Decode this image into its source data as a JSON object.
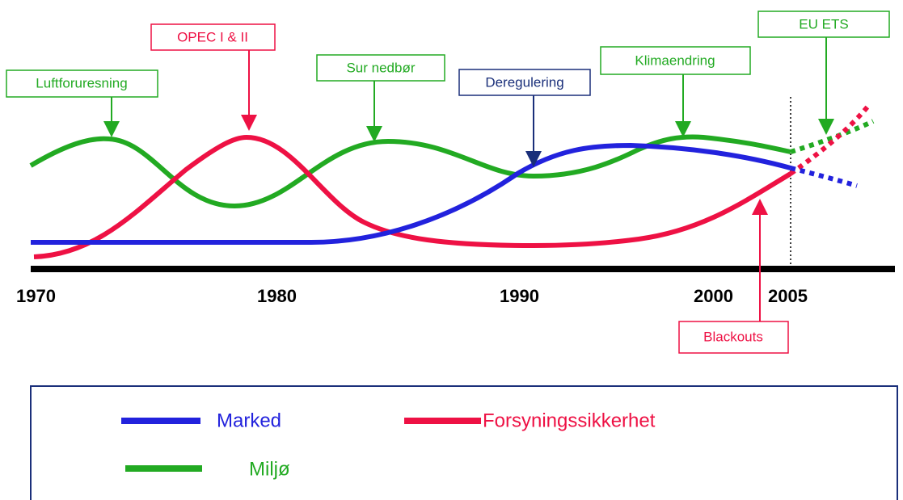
{
  "axis_labels": [
    "1970",
    "1980",
    "1990",
    "2000",
    "2005"
  ],
  "callouts": [
    {
      "label": "Luftforuresning"
    },
    {
      "label": "OPEC I & II"
    },
    {
      "label": "Sur nedbør"
    },
    {
      "label": "Deregulering"
    },
    {
      "label": "Klimaendring"
    },
    {
      "label": "EU ETS"
    },
    {
      "label": "Blackouts"
    }
  ],
  "legend": [
    {
      "name": "Marked"
    },
    {
      "name": "Forsyningssikkerhet"
    },
    {
      "name": "Miljø"
    }
  ]
}
